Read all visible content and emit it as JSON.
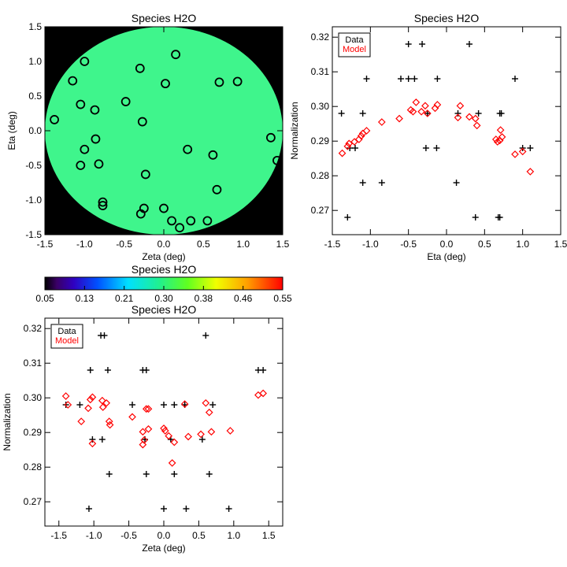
{
  "chart_data": [
    {
      "type": "scatter",
      "variant": "field-map",
      "title": "Species H2O",
      "xlabel": "Zeta (deg)",
      "ylabel": "Eta (deg)",
      "xlim": [
        -1.5,
        1.5
      ],
      "ylim": [
        -1.5,
        1.5
      ],
      "xticks": [
        -1.5,
        -1.0,
        -0.5,
        0.0,
        0.5,
        1.0,
        1.5
      ],
      "yticks": [
        -1.5,
        -1.0,
        -0.5,
        0.0,
        0.5,
        1.0,
        1.5
      ],
      "field_radius_deg": 1.5,
      "field_value": 0.29,
      "background_color": "#000000",
      "marker": "circle",
      "marker_color": "#000000",
      "points": [
        [
          -1.38,
          0.16
        ],
        [
          -1.15,
          0.72
        ],
        [
          -1.0,
          1.0
        ],
        [
          -1.05,
          0.38
        ],
        [
          -0.87,
          0.3
        ],
        [
          -1.0,
          -0.27
        ],
        [
          -0.86,
          -0.12
        ],
        [
          -1.05,
          -0.5
        ],
        [
          -0.82,
          -0.48
        ],
        [
          -0.77,
          -1.03
        ],
        [
          -0.77,
          -1.08
        ],
        [
          -0.48,
          0.42
        ],
        [
          -0.3,
          0.9
        ],
        [
          -0.27,
          0.13
        ],
        [
          -0.23,
          -0.63
        ],
        [
          -0.25,
          -1.12
        ],
        [
          -0.29,
          -1.2
        ],
        [
          0.02,
          0.68
        ],
        [
          0.15,
          1.1
        ],
        [
          0.7,
          0.7
        ],
        [
          0.93,
          0.71
        ],
        [
          0.3,
          -0.27
        ],
        [
          0.62,
          -0.35
        ],
        [
          0.67,
          -0.85
        ],
        [
          0.0,
          -1.12
        ],
        [
          0.1,
          -1.3
        ],
        [
          0.2,
          -1.4
        ],
        [
          0.34,
          -1.3
        ],
        [
          0.55,
          -1.3
        ],
        [
          1.35,
          -0.1
        ],
        [
          1.43,
          -0.43
        ]
      ]
    },
    {
      "type": "colorbar",
      "title": "Species H2O",
      "range": [
        0.05,
        0.55
      ],
      "tick_labels": [
        "0.05",
        "0.13",
        "0.21",
        "0.30",
        "0.38",
        "0.46",
        "0.55"
      ]
    },
    {
      "type": "scatter",
      "title": "Species H2O",
      "xlabel": "Eta (deg)",
      "ylabel": "Normalization",
      "xlim": [
        -1.5,
        1.5
      ],
      "ylim": [
        0.263,
        0.323
      ],
      "xticks": [
        -1.5,
        -1.0,
        -0.5,
        0.0,
        0.5,
        1.0,
        1.5
      ],
      "yticks": [
        0.27,
        0.28,
        0.29,
        0.3,
        0.31,
        0.32
      ],
      "legend": {
        "position": "top-left",
        "entries": [
          "Data",
          "Model"
        ]
      },
      "series": [
        {
          "name": "Data",
          "marker": "plus",
          "color": "#000000",
          "points": [
            [
              -1.3,
              0.268
            ],
            [
              -1.38,
              0.298
            ],
            [
              -1.27,
              0.288
            ],
            [
              -1.2,
              0.288
            ],
            [
              -1.1,
              0.298
            ],
            [
              -1.1,
              0.278
            ],
            [
              -1.05,
              0.308
            ],
            [
              -0.85,
              0.278
            ],
            [
              -0.6,
              0.308
            ],
            [
              -0.5,
              0.318
            ],
            [
              -0.5,
              0.308
            ],
            [
              -0.42,
              0.308
            ],
            [
              -0.32,
              0.318
            ],
            [
              -0.27,
              0.288
            ],
            [
              -0.25,
              0.298
            ],
            [
              -0.12,
              0.308
            ],
            [
              -0.13,
              0.288
            ],
            [
              0.13,
              0.278
            ],
            [
              0.15,
              0.298
            ],
            [
              0.3,
              0.318
            ],
            [
              0.38,
              0.268
            ],
            [
              0.42,
              0.298
            ],
            [
              0.68,
              0.268
            ],
            [
              0.7,
              0.268
            ],
            [
              0.7,
              0.298
            ],
            [
              0.72,
              0.298
            ],
            [
              0.9,
              0.308
            ],
            [
              1.0,
              0.288
            ],
            [
              1.1,
              0.288
            ]
          ]
        },
        {
          "name": "Model",
          "marker": "diamond",
          "color": "#ff0000",
          "points": [
            [
              -1.37,
              0.2865
            ],
            [
              -1.3,
              0.2885
            ],
            [
              -1.28,
              0.2893
            ],
            [
              -1.21,
              0.2898
            ],
            [
              -1.15,
              0.2905
            ],
            [
              -1.12,
              0.2915
            ],
            [
              -1.1,
              0.2922
            ],
            [
              -1.05,
              0.293
            ],
            [
              -0.85,
              0.2955
            ],
            [
              -0.62,
              0.2965
            ],
            [
              -0.47,
              0.299
            ],
            [
              -0.44,
              0.2985
            ],
            [
              -0.4,
              0.3012
            ],
            [
              -0.33,
              0.2985
            ],
            [
              -0.28,
              0.3002
            ],
            [
              -0.25,
              0.298
            ],
            [
              -0.15,
              0.2995
            ],
            [
              -0.12,
              0.3005
            ],
            [
              0.15,
              0.2968
            ],
            [
              0.18,
              0.3002
            ],
            [
              0.3,
              0.297
            ],
            [
              0.38,
              0.2965
            ],
            [
              0.4,
              0.2945
            ],
            [
              0.65,
              0.2905
            ],
            [
              0.67,
              0.2898
            ],
            [
              0.7,
              0.2902
            ],
            [
              0.71,
              0.2932
            ],
            [
              0.73,
              0.2912
            ],
            [
              0.9,
              0.2862
            ],
            [
              1.0,
              0.287
            ],
            [
              1.1,
              0.2812
            ]
          ]
        }
      ]
    },
    {
      "type": "scatter",
      "title": "Species H2O",
      "xlabel": "Zeta (deg)",
      "ylabel": "Normalization",
      "xlim": [
        -1.7,
        1.7
      ],
      "ylim": [
        0.263,
        0.323
      ],
      "xticks": [
        -1.5,
        -1.0,
        -0.5,
        0.0,
        0.5,
        1.0,
        1.5
      ],
      "yticks": [
        0.27,
        0.28,
        0.29,
        0.3,
        0.31,
        0.32
      ],
      "legend": {
        "position": "top-left",
        "entries": [
          "Data",
          "Model"
        ]
      },
      "series": [
        {
          "name": "Data",
          "marker": "plus",
          "color": "#000000",
          "points": [
            [
              -1.4,
              0.298
            ],
            [
              -1.2,
              0.298
            ],
            [
              -1.07,
              0.268
            ],
            [
              -1.05,
              0.308
            ],
            [
              -1.02,
              0.288
            ],
            [
              -0.9,
              0.318
            ],
            [
              -0.85,
              0.318
            ],
            [
              -0.88,
              0.288
            ],
            [
              -0.8,
              0.308
            ],
            [
              -0.78,
              0.278
            ],
            [
              -0.45,
              0.298
            ],
            [
              -0.3,
              0.308
            ],
            [
              -0.25,
              0.308
            ],
            [
              -0.27,
              0.288
            ],
            [
              -0.25,
              0.278
            ],
            [
              0.0,
              0.298
            ],
            [
              0.0,
              0.268
            ],
            [
              0.1,
              0.288
            ],
            [
              0.15,
              0.278
            ],
            [
              0.15,
              0.298
            ],
            [
              0.3,
              0.298
            ],
            [
              0.32,
              0.268
            ],
            [
              0.55,
              0.288
            ],
            [
              0.6,
              0.318
            ],
            [
              0.65,
              0.278
            ],
            [
              0.7,
              0.298
            ],
            [
              0.93,
              0.268
            ],
            [
              1.35,
              0.308
            ],
            [
              1.42,
              0.308
            ]
          ]
        },
        {
          "name": "Model",
          "marker": "diamond",
          "color": "#ff0000",
          "points": [
            [
              -1.4,
              0.3005
            ],
            [
              -1.37,
              0.298
            ],
            [
              -1.18,
              0.2932
            ],
            [
              -1.08,
              0.297
            ],
            [
              -1.05,
              0.2995
            ],
            [
              -1.02,
              0.3002
            ],
            [
              -1.02,
              0.2868
            ],
            [
              -0.88,
              0.2992
            ],
            [
              -0.87,
              0.2973
            ],
            [
              -0.82,
              0.2985
            ],
            [
              -0.78,
              0.2932
            ],
            [
              -0.77,
              0.2922
            ],
            [
              -0.45,
              0.2945
            ],
            [
              -0.3,
              0.2902
            ],
            [
              -0.3,
              0.2865
            ],
            [
              -0.28,
              0.2878
            ],
            [
              -0.25,
              0.2968
            ],
            [
              -0.22,
              0.2968
            ],
            [
              -0.22,
              0.291
            ],
            [
              0.0,
              0.2912
            ],
            [
              0.02,
              0.2905
            ],
            [
              0.07,
              0.289
            ],
            [
              0.12,
              0.2812
            ],
            [
              0.15,
              0.2872
            ],
            [
              0.3,
              0.2982
            ],
            [
              0.35,
              0.2888
            ],
            [
              0.53,
              0.2895
            ],
            [
              0.6,
              0.2985
            ],
            [
              0.65,
              0.2958
            ],
            [
              0.68,
              0.2902
            ],
            [
              0.95,
              0.2905
            ],
            [
              1.35,
              0.3008
            ],
            [
              1.42,
              0.3013
            ]
          ]
        }
      ]
    }
  ]
}
